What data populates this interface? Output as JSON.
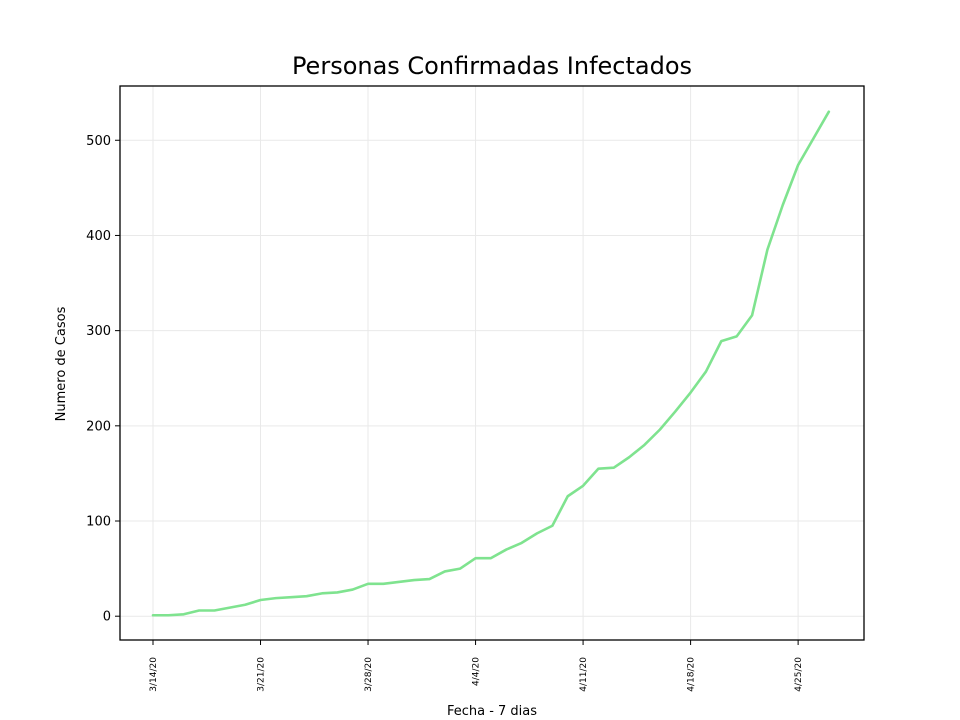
{
  "chart_data": {
    "type": "line",
    "title": "Personas Confirmadas Infectados",
    "xlabel": "Fecha - 7 dias",
    "ylabel": "Numero de Casos",
    "ylim": [
      -25,
      557
    ],
    "y_ticks": [
      0,
      100,
      200,
      300,
      400,
      500
    ],
    "x_ticks": [
      "3/14/20",
      "3/21/20",
      "3/28/20",
      "4/4/20",
      "4/11/20",
      "4/18/20",
      "4/25/20"
    ],
    "grid": true,
    "line_color": "#7fe38f",
    "series": [
      {
        "x": [
          "3/14/20",
          "3/15/20",
          "3/16/20",
          "3/17/20",
          "3/18/20",
          "3/19/20",
          "3/20/20",
          "3/21/20",
          "3/22/20",
          "3/23/20",
          "3/24/20",
          "3/25/20",
          "3/26/20",
          "3/27/20",
          "3/28/20",
          "3/29/20",
          "3/30/20",
          "3/31/20",
          "4/1/20",
          "4/2/20",
          "4/3/20",
          "4/4/20",
          "4/5/20",
          "4/6/20",
          "4/7/20",
          "4/8/20",
          "4/9/20",
          "4/10/20",
          "4/11/20",
          "4/12/20",
          "4/13/20",
          "4/14/20",
          "4/15/20",
          "4/16/20",
          "4/17/20",
          "4/18/20",
          "4/19/20",
          "4/20/20",
          "4/21/20",
          "4/22/20",
          "4/23/20",
          "4/24/20",
          "4/25/20",
          "4/26/20",
          "4/27/20"
        ],
        "values": [
          1,
          1,
          2,
          6,
          6,
          9,
          12,
          17,
          19,
          20,
          21,
          24,
          25,
          28,
          34,
          34,
          36,
          38,
          39,
          47,
          50,
          61,
          61,
          70,
          77,
          87,
          95,
          126,
          137,
          155,
          156,
          167,
          180,
          196,
          215,
          235,
          257,
          289,
          294,
          316,
          385,
          432,
          474,
          502,
          530
        ]
      }
    ]
  }
}
